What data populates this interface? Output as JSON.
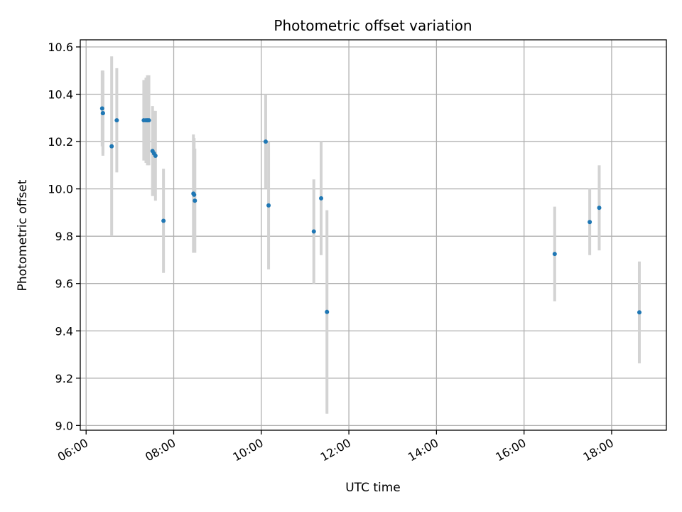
{
  "chart_data": {
    "type": "scatter",
    "title": "Photometric offset variation",
    "xlabel": "UTC time",
    "ylabel": "Photometric offset",
    "x_ticks": [
      "06:00",
      "08:00",
      "10:00",
      "12:00",
      "14:00",
      "16:00",
      "18:00"
    ],
    "y_ticks": [
      "9.0",
      "9.2",
      "9.4",
      "9.6",
      "9.8",
      "10.0",
      "10.2",
      "10.4",
      "10.6"
    ],
    "xlim": [
      "05:52",
      "19:15"
    ],
    "ylim": [
      8.98,
      10.63
    ],
    "grid": true,
    "colors": {
      "points": "#1f77b4",
      "errorbars": "#d3d3d3",
      "grid": "#b0b0b0"
    },
    "points": [
      {
        "x": "06:22",
        "y": 10.34,
        "err": 0.16
      },
      {
        "x": "06:23",
        "y": 10.32,
        "err": 0.17
      },
      {
        "x": "06:23",
        "y": 10.32,
        "err": 0.18
      },
      {
        "x": "06:35",
        "y": 10.18,
        "err": 0.38
      },
      {
        "x": "06:42",
        "y": 10.29,
        "err": 0.22
      },
      {
        "x": "07:19",
        "y": 10.29,
        "err": 0.17
      },
      {
        "x": "07:22",
        "y": 10.29,
        "err": 0.18
      },
      {
        "x": "07:24",
        "y": 10.29,
        "err": 0.19
      },
      {
        "x": "07:26",
        "y": 10.29,
        "err": 0.19
      },
      {
        "x": "07:31",
        "y": 10.16,
        "err": 0.19
      },
      {
        "x": "07:33",
        "y": 10.15,
        "err": 0.18
      },
      {
        "x": "07:35",
        "y": 10.14,
        "err": 0.19
      },
      {
        "x": "07:46",
        "y": 9.865,
        "err": 0.22
      },
      {
        "x": "08:27",
        "y": 9.98,
        "err": 0.25
      },
      {
        "x": "08:28",
        "y": 9.975,
        "err": 0.24
      },
      {
        "x": "08:29",
        "y": 9.95,
        "err": 0.22
      },
      {
        "x": "10:06",
        "y": 10.2,
        "err": 0.2
      },
      {
        "x": "10:10",
        "y": 9.93,
        "err": 0.27
      },
      {
        "x": "11:12",
        "y": 9.82,
        "err": 0.22
      },
      {
        "x": "11:22",
        "y": 9.96,
        "err": 0.24
      },
      {
        "x": "11:30",
        "y": 9.48,
        "err": 0.43
      },
      {
        "x": "16:42",
        "y": 9.725,
        "err": 0.2
      },
      {
        "x": "17:30",
        "y": 9.86,
        "err": 0.14
      },
      {
        "x": "17:43",
        "y": 9.92,
        "err": 0.18
      },
      {
        "x": "18:38",
        "y": 9.478,
        "err": 0.215
      }
    ]
  }
}
